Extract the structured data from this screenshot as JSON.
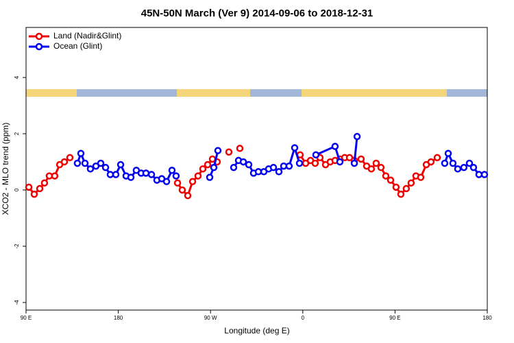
{
  "chart_data": {
    "type": "line",
    "title": "45N-50N March (Ver 9)   2014-09-06 to 2018-12-31",
    "xlabel": "Longitude (deg E)",
    "ylabel": "XCO2 - MLO trend (ppm)",
    "xlim": [
      90,
      540
    ],
    "ylim": [
      -4.27,
      5.78
    ],
    "xticks": [
      {
        "value": 90,
        "label": "90 E"
      },
      180,
      {
        "value": 270,
        "label": "90 W"
      },
      {
        "value": 360,
        "label": "0"
      },
      {
        "value": 450,
        "label": "90 E"
      },
      {
        "value": 540,
        "label": "180"
      }
    ],
    "yticks": [
      -4,
      -2,
      0,
      2,
      4
    ],
    "legend": "topleft",
    "series": [
      {
        "name": "Land (Nadir&Glint)",
        "color": "#ee0000",
        "x": [
          92.7,
          98,
          103.4,
          108,
          112.7,
          118,
          122.8,
          127.4,
          132.8,
          null,
          237.8,
          242.4,
          247.8,
          252.5,
          257.8,
          262.5,
          267.2,
          271.9,
          276.5,
          null,
          287.9,
          null,
          298.6,
          null,
          357.4,
          362.8,
          367.5,
          372.1,
          376.8,
          382.2,
          386.8,
          391.5,
          396.2,
          400.9,
          405.6,
          410.3,
          416.9,
          422.3,
          426.9,
          431.6,
          436.3,
          441,
          445.7,
          451,
          455.7,
          461,
          465.7,
          470.4,
          475.1,
          480.5,
          485.1,
          491.2
        ],
        "values": [
          0.1,
          -0.15,
          0.05,
          0.25,
          0.5,
          0.5,
          0.9,
          1.0,
          1.15,
          null,
          0.25,
          0.0,
          -0.2,
          0.3,
          0.5,
          0.75,
          0.9,
          1.1,
          1.0,
          null,
          1.35,
          null,
          1.48,
          null,
          1.25,
          0.95,
          1.05,
          0.95,
          1.15,
          0.9,
          1.0,
          1.05,
          1.1,
          1.15,
          1.15,
          1.05,
          1.1,
          0.85,
          0.75,
          0.95,
          0.8,
          0.5,
          0.35,
          0.1,
          -0.15,
          0.05,
          0.25,
          0.5,
          0.45,
          0.9,
          1.0,
          1.15
        ]
      },
      {
        "name": "Ocean (Glint)",
        "color": "#0000ee",
        "x": [
          140.1,
          143.5,
          147.5,
          152.8,
          158.2,
          162.9,
          167.6,
          172.2,
          177.6,
          182.3,
          187.6,
          192.3,
          197.6,
          202.3,
          207,
          212.4,
          217.7,
          222.4,
          227.1,
          232.4,
          236.4,
          null,
          269.2,
          273.2,
          277.2,
          null,
          292.6,
          297.3,
          302,
          307.3,
          312,
          316.7,
          322,
          326.7,
          331.4,
          336.7,
          341.4,
          346.7,
          352.1,
          356.8,
          null,
          372.8,
          391.5,
          396.2,
          null,
          410.3,
          413,
          null,
          498.5,
          501.9,
          506.5,
          511.2,
          517.2,
          522.6,
          526.6,
          531.9,
          537.3
        ],
        "values": [
          0.95,
          1.3,
          0.95,
          0.75,
          0.85,
          0.95,
          0.8,
          0.55,
          0.55,
          0.9,
          0.5,
          0.45,
          0.7,
          0.6,
          0.6,
          0.55,
          0.35,
          0.4,
          0.3,
          0.7,
          0.5,
          null,
          0.45,
          0.8,
          1.4,
          null,
          0.8,
          1.05,
          1.0,
          0.9,
          0.6,
          0.65,
          0.65,
          0.75,
          0.8,
          0.65,
          0.85,
          0.85,
          1.5,
          0.95,
          null,
          1.25,
          1.55,
          1.0,
          null,
          0.95,
          1.9,
          null,
          0.95,
          1.3,
          0.95,
          0.75,
          0.8,
          0.95,
          0.8,
          0.55,
          0.55
        ]
      }
    ]
  }
}
